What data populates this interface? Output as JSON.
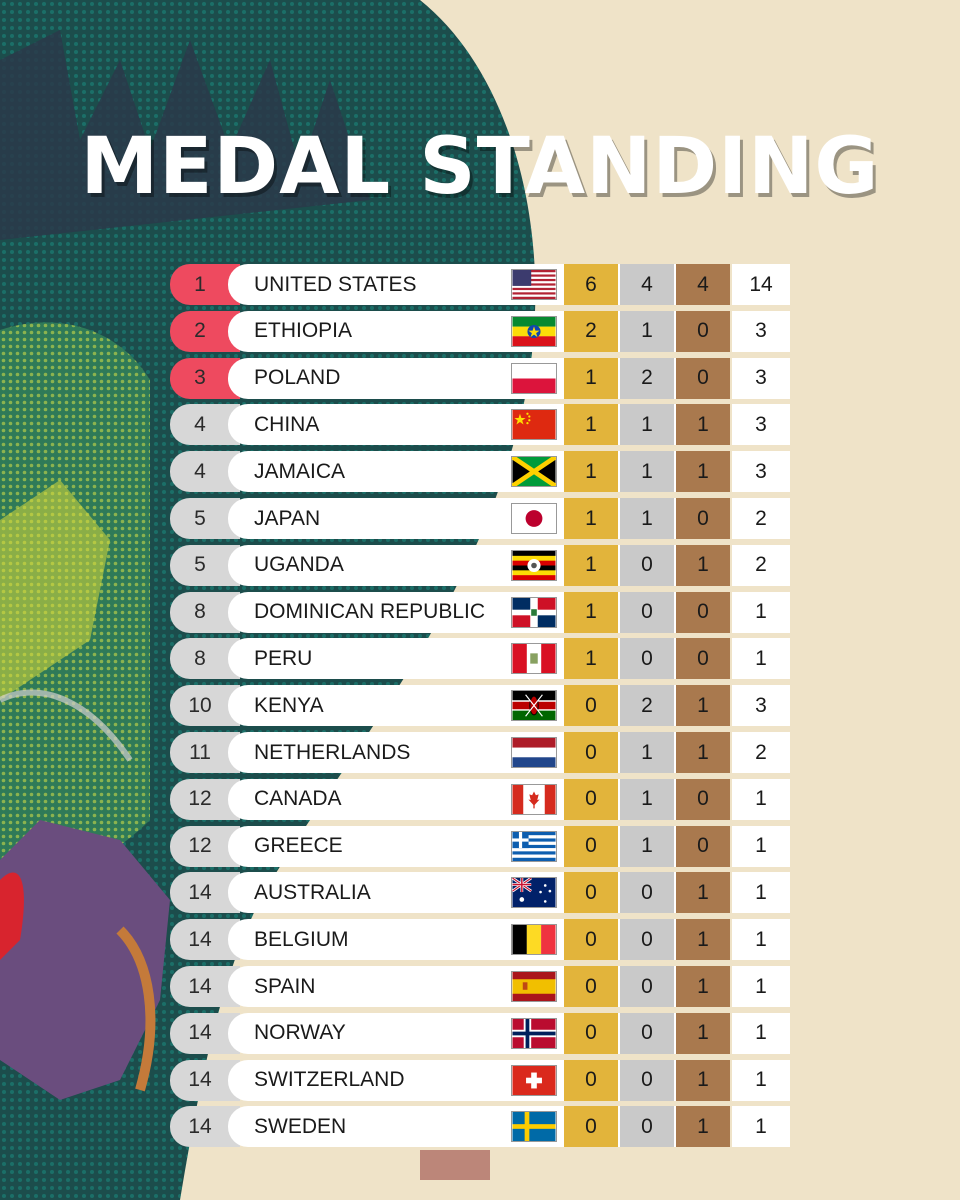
{
  "title": "MEDAL STANDING",
  "colors": {
    "top_rank": "#ee4a5f",
    "rank_default": "#d7d7d7",
    "gold": "#e2b43b",
    "silver": "#c9c9c9",
    "bronze": "#a9794e",
    "background": "#efe3c8"
  },
  "rows": [
    {
      "rank": "1",
      "country": "UNITED STATES",
      "flag": "us-flag",
      "gold": "6",
      "silver": "4",
      "bronze": "4",
      "total": "14"
    },
    {
      "rank": "2",
      "country": "ETHIOPIA",
      "flag": "ethiopia-flag",
      "gold": "2",
      "silver": "1",
      "bronze": "0",
      "total": "3"
    },
    {
      "rank": "3",
      "country": "POLAND",
      "flag": "poland-flag",
      "gold": "1",
      "silver": "2",
      "bronze": "0",
      "total": "3"
    },
    {
      "rank": "4",
      "country": "CHINA",
      "flag": "china-flag",
      "gold": "1",
      "silver": "1",
      "bronze": "1",
      "total": "3"
    },
    {
      "rank": "4",
      "country": "JAMAICA",
      "flag": "jamaica-flag",
      "gold": "1",
      "silver": "1",
      "bronze": "1",
      "total": "3"
    },
    {
      "rank": "5",
      "country": "JAPAN",
      "flag": "japan-flag",
      "gold": "1",
      "silver": "1",
      "bronze": "0",
      "total": "2"
    },
    {
      "rank": "5",
      "country": "UGANDA",
      "flag": "uganda-flag",
      "gold": "1",
      "silver": "0",
      "bronze": "1",
      "total": "2"
    },
    {
      "rank": "8",
      "country": "DOMINICAN REPUBLIC",
      "flag": "dominican-republic-flag",
      "gold": "1",
      "silver": "0",
      "bronze": "0",
      "total": "1"
    },
    {
      "rank": "8",
      "country": "PERU",
      "flag": "peru-flag",
      "gold": "1",
      "silver": "0",
      "bronze": "0",
      "total": "1"
    },
    {
      "rank": "10",
      "country": "KENYA",
      "flag": "kenya-flag",
      "gold": "0",
      "silver": "2",
      "bronze": "1",
      "total": "3"
    },
    {
      "rank": "11",
      "country": "NETHERLANDS",
      "flag": "netherlands-flag",
      "gold": "0",
      "silver": "1",
      "bronze": "1",
      "total": "2"
    },
    {
      "rank": "12",
      "country": "CANADA",
      "flag": "canada-flag",
      "gold": "0",
      "silver": "1",
      "bronze": "0",
      "total": "1"
    },
    {
      "rank": "12",
      "country": "GREECE",
      "flag": "greece-flag",
      "gold": "0",
      "silver": "1",
      "bronze": "0",
      "total": "1"
    },
    {
      "rank": "14",
      "country": "AUSTRALIA",
      "flag": "australia-flag",
      "gold": "0",
      "silver": "0",
      "bronze": "1",
      "total": "1"
    },
    {
      "rank": "14",
      "country": "BELGIUM",
      "flag": "belgium-flag",
      "gold": "0",
      "silver": "0",
      "bronze": "1",
      "total": "1"
    },
    {
      "rank": "14",
      "country": "SPAIN",
      "flag": "spain-flag",
      "gold": "0",
      "silver": "0",
      "bronze": "1",
      "total": "1"
    },
    {
      "rank": "14",
      "country": "NORWAY",
      "flag": "norway-flag",
      "gold": "0",
      "silver": "0",
      "bronze": "1",
      "total": "1"
    },
    {
      "rank": "14",
      "country": "SWITZERLAND",
      "flag": "switzerland-flag",
      "gold": "0",
      "silver": "0",
      "bronze": "1",
      "total": "1"
    },
    {
      "rank": "14",
      "country": "SWEDEN",
      "flag": "sweden-flag",
      "gold": "0",
      "silver": "0",
      "bronze": "1",
      "total": "1"
    }
  ]
}
